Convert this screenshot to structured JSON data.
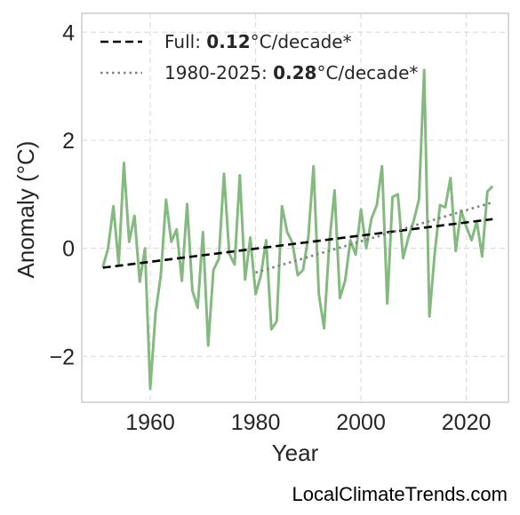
{
  "chart_data": {
    "type": "line",
    "xlabel": "Year",
    "ylabel": "Anomaly (°C)",
    "xlim": [
      1947,
      2028
    ],
    "ylim": [
      -2.85,
      4.35
    ],
    "xticks": [
      1960,
      1980,
      2000,
      2020
    ],
    "yticks": [
      -2,
      0,
      2,
      4
    ],
    "ytick_labels": [
      "−2",
      "0",
      "2",
      "4"
    ],
    "grid": true,
    "legend_position": "top-left",
    "series": [
      {
        "name": "",
        "style": "solid",
        "color": "#84b97f",
        "x": [
          1951,
          1952,
          1953,
          1954,
          1955,
          1956,
          1957,
          1958,
          1959,
          1960,
          1961,
          1962,
          1963,
          1964,
          1965,
          1966,
          1967,
          1968,
          1969,
          1970,
          1971,
          1972,
          1973,
          1974,
          1975,
          1976,
          1977,
          1978,
          1979,
          1980,
          1981,
          1982,
          1983,
          1984,
          1985,
          1986,
          1987,
          1988,
          1989,
          1990,
          1991,
          1992,
          1993,
          1994,
          1995,
          1996,
          1997,
          1998,
          1999,
          2000,
          2001,
          2002,
          2003,
          2004,
          2005,
          2006,
          2007,
          2008,
          2009,
          2010,
          2011,
          2012,
          2013,
          2014,
          2015,
          2016,
          2017,
          2018,
          2019,
          2020,
          2021,
          2022,
          2023,
          2024,
          2025
        ],
        "y": [
          -0.35,
          0.0,
          0.78,
          -0.3,
          1.58,
          0.12,
          0.6,
          -0.62,
          0.0,
          -2.6,
          -1.2,
          -0.5,
          0.9,
          0.12,
          0.35,
          -0.6,
          0.82,
          -0.78,
          -1.1,
          0.3,
          -1.8,
          -0.4,
          -0.2,
          1.38,
          -0.1,
          -0.3,
          1.35,
          -0.58,
          0.2,
          -0.85,
          -0.5,
          0.15,
          -1.5,
          -1.35,
          0.78,
          0.3,
          0.1,
          -0.5,
          -0.4,
          0.2,
          1.52,
          -0.85,
          -1.48,
          0.1,
          1.07,
          -0.92,
          -0.6,
          0.15,
          -0.12,
          0.72,
          0.0,
          0.55,
          0.8,
          1.52,
          -1.02,
          0.95,
          1.0,
          -0.18,
          0.2,
          0.5,
          0.9,
          3.3,
          -1.26,
          -0.1,
          0.8,
          0.76,
          1.3,
          -0.05,
          0.7,
          0.4,
          0.15,
          0.5,
          -0.15,
          1.05,
          1.15
        ]
      },
      {
        "name": "Full: 0.12°C/decade*",
        "style": "dashed",
        "color": "#000000",
        "x": [
          1951,
          2025
        ],
        "y": [
          -0.36,
          0.54
        ]
      },
      {
        "name": "1980-2025: 0.28°C/decade*",
        "style": "dotted",
        "color": "#808080",
        "x": [
          1980,
          2025
        ],
        "y": [
          -0.45,
          0.85
        ]
      }
    ]
  },
  "legend": [
    {
      "prefix": "Full: ",
      "bold": "0.12",
      "suffix": "°C/decade*"
    },
    {
      "prefix": "1980-2025: ",
      "bold": "0.28",
      "suffix": "°C/decade*"
    }
  ],
  "watermark": "LocalClimateTrends.com"
}
